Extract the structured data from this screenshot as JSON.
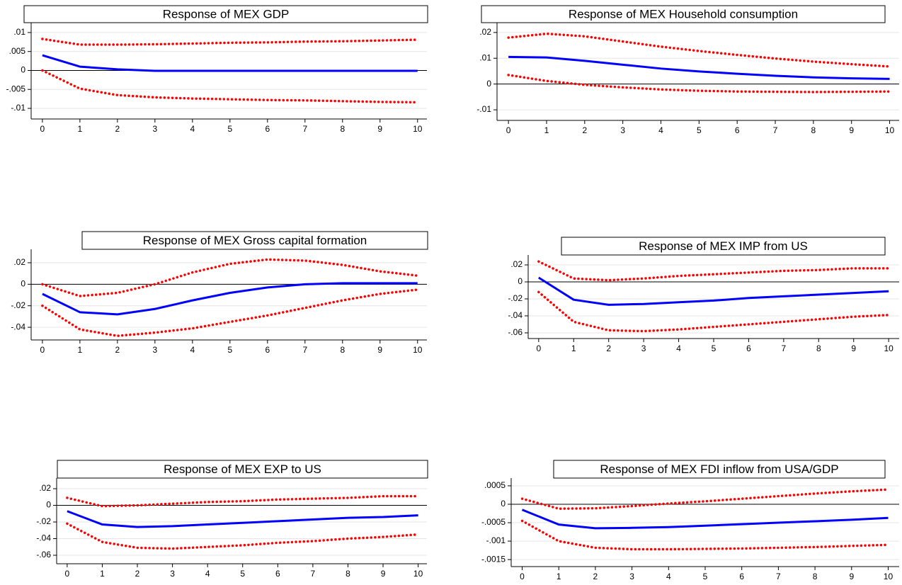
{
  "chart_data": [
    {
      "type": "line",
      "title": "Response of MEX GDP",
      "x": [
        0,
        1,
        2,
        3,
        4,
        5,
        6,
        7,
        8,
        9,
        10
      ],
      "xlim": [
        -0.3,
        10.25
      ],
      "xticks": [
        0,
        1,
        2,
        3,
        4,
        5,
        6,
        7,
        8,
        9,
        10
      ],
      "ylim": [
        -0.0128,
        0.0126
      ],
      "yticks": [
        {
          "value": 0.01,
          "label": ".01"
        },
        {
          "value": 0.005,
          "label": ".005"
        },
        0,
        {
          "value": -0.005,
          "label": "-.005"
        },
        {
          "value": -0.01,
          "label": "-.01"
        }
      ],
      "grid": true,
      "zero_line": true,
      "series": [
        {
          "color": "#0000ff",
          "line_style": "solid",
          "values": [
            0.004,
            0.001,
            0.0003,
            -0.0001,
            -0.0001,
            -0.0001,
            -0.0001,
            -0.0001,
            -0.0001,
            -0.0001,
            -0.0001
          ]
        },
        {
          "color": "#ff0000",
          "line_style": "dotted",
          "values": [
            0.0083,
            0.0068,
            0.0068,
            0.0069,
            0.0071,
            0.0073,
            0.0074,
            0.0076,
            0.0077,
            0.0079,
            0.0081
          ]
        },
        {
          "color": "#ff0000",
          "line_style": "dotted",
          "values": [
            0,
            -0.0048,
            -0.0065,
            -0.0071,
            -0.0074,
            -0.0076,
            -0.0078,
            -0.0079,
            -0.0081,
            -0.0083,
            -0.0084
          ]
        }
      ]
    },
    {
      "type": "line",
      "title": "Response of MEX Household consumption",
      "x": [
        0,
        1,
        2,
        3,
        4,
        5,
        6,
        7,
        8,
        9,
        10
      ],
      "xlim": [
        -0.3,
        10.25
      ],
      "xticks": [
        0,
        1,
        2,
        3,
        4,
        5,
        6,
        7,
        8,
        9,
        10
      ],
      "ylim": [
        -0.0141,
        0.0238
      ],
      "yticks": [
        {
          "value": 0.02,
          "label": ".02"
        },
        {
          "value": 0.01,
          "label": ".01"
        },
        0,
        {
          "value": -0.01,
          "label": "-.01"
        }
      ],
      "grid": true,
      "zero_line": true,
      "series": [
        {
          "color": "#0000ff",
          "line_style": "solid",
          "values": [
            0.0105,
            0.0103,
            0.009,
            0.0075,
            0.006,
            0.0049,
            0.004,
            0.0032,
            0.0026,
            0.0022,
            0.002
          ]
        },
        {
          "color": "#ff0000",
          "line_style": "dotted",
          "values": [
            0.018,
            0.0195,
            0.0185,
            0.0165,
            0.0145,
            0.0128,
            0.0113,
            0.0099,
            0.0087,
            0.0077,
            0.0068
          ]
        },
        {
          "color": "#ff0000",
          "line_style": "dotted",
          "values": [
            0.0035,
            0.0012,
            -0.0003,
            -0.0013,
            -0.0021,
            -0.0026,
            -0.0029,
            -0.003,
            -0.0031,
            -0.003,
            -0.0029
          ]
        }
      ]
    },
    {
      "type": "line",
      "title": "Response of MEX Gross capital formation",
      "x": [
        0,
        1,
        2,
        3,
        4,
        5,
        6,
        7,
        8,
        9,
        10
      ],
      "xlim": [
        -0.3,
        10.25
      ],
      "xticks": [
        0,
        1,
        2,
        3,
        4,
        5,
        6,
        7,
        8,
        9,
        10
      ],
      "ylim": [
        -0.0518,
        0.0325
      ],
      "yticks": [
        {
          "value": 0.02,
          "label": ".02"
        },
        0,
        {
          "value": -0.02,
          "label": "-.02"
        },
        {
          "value": -0.04,
          "label": "-.04"
        }
      ],
      "grid": true,
      "zero_line": true,
      "series": [
        {
          "color": "#0000ff",
          "line_style": "solid",
          "values": [
            -0.009,
            -0.026,
            -0.028,
            -0.023,
            -0.015,
            -0.008,
            -0.003,
            0,
            0.001,
            0.001,
            0.001
          ]
        },
        {
          "color": "#ff0000",
          "line_style": "dotted",
          "values": [
            0,
            -0.011,
            -0.008,
            0,
            0.011,
            0.019,
            0.023,
            0.022,
            0.018,
            0.012,
            0.008
          ]
        },
        {
          "color": "#ff0000",
          "line_style": "dotted",
          "values": [
            -0.02,
            -0.042,
            -0.048,
            -0.045,
            -0.041,
            -0.035,
            -0.029,
            -0.022,
            -0.015,
            -0.009,
            -0.005
          ]
        }
      ]
    },
    {
      "type": "line",
      "title": "Response of MEX IMP from US",
      "x": [
        0,
        1,
        2,
        3,
        4,
        5,
        6,
        7,
        8,
        9,
        10
      ],
      "xlim": [
        -0.3,
        10.3
      ],
      "xticks": [
        0,
        1,
        2,
        3,
        4,
        5,
        6,
        7,
        8,
        9,
        10
      ],
      "ylim": [
        -0.0667,
        0.0317
      ],
      "yticks": [
        {
          "value": 0.02,
          "label": ".02"
        },
        0,
        {
          "value": -0.02,
          "label": "-.02"
        },
        {
          "value": -0.04,
          "label": "-.04"
        },
        {
          "value": -0.06,
          "label": "-.06"
        }
      ],
      "grid": true,
      "zero_line": true,
      "series": [
        {
          "color": "#0000ff",
          "line_style": "solid",
          "values": [
            0.005,
            -0.021,
            -0.027,
            -0.026,
            -0.024,
            -0.022,
            -0.019,
            -0.017,
            -0.015,
            -0.013,
            -0.011
          ]
        },
        {
          "color": "#ff0000",
          "line_style": "dotted",
          "values": [
            0.024,
            0.004,
            0.002,
            0.004,
            0.007,
            0.009,
            0.011,
            0.013,
            0.014,
            0.016,
            0.016
          ]
        },
        {
          "color": "#ff0000",
          "line_style": "dotted",
          "values": [
            -0.012,
            -0.047,
            -0.057,
            -0.058,
            -0.056,
            -0.053,
            -0.05,
            -0.047,
            -0.044,
            -0.041,
            -0.039
          ]
        }
      ]
    },
    {
      "type": "line",
      "title": "Response of MEX EXP to US",
      "x": [
        0,
        1,
        2,
        3,
        4,
        5,
        6,
        7,
        8,
        9,
        10
      ],
      "xlim": [
        -0.3,
        10.25
      ],
      "xticks": [
        0,
        1,
        2,
        3,
        4,
        5,
        6,
        7,
        8,
        9,
        10
      ],
      "ylim": [
        -0.0702,
        0.0328
      ],
      "yticks": [
        {
          "value": 0.02,
          "label": ".02"
        },
        0,
        {
          "value": -0.02,
          "label": "-.02"
        },
        {
          "value": -0.04,
          "label": "-.04"
        },
        {
          "value": -0.06,
          "label": "-.06"
        }
      ],
      "grid": true,
      "zero_line": true,
      "series": [
        {
          "color": "#0000ff",
          "line_style": "solid",
          "values": [
            -0.007,
            -0.023,
            -0.026,
            -0.025,
            -0.023,
            -0.021,
            -0.019,
            -0.017,
            -0.015,
            -0.014,
            -0.012
          ]
        },
        {
          "color": "#ff0000",
          "line_style": "dotted",
          "values": [
            0.009,
            -0.001,
            0,
            0.002,
            0.004,
            0.005,
            0.007,
            0.008,
            0.009,
            0.011,
            0.011
          ]
        },
        {
          "color": "#ff0000",
          "line_style": "dotted",
          "values": [
            -0.022,
            -0.044,
            -0.051,
            -0.052,
            -0.05,
            -0.048,
            -0.045,
            -0.043,
            -0.04,
            -0.038,
            -0.035
          ]
        }
      ]
    },
    {
      "type": "line",
      "title": "Response of MEX FDI inflow from USA/GDP",
      "x": [
        0,
        1,
        2,
        3,
        4,
        5,
        6,
        7,
        8,
        9,
        10
      ],
      "xlim": [
        -0.3,
        10.3
      ],
      "xticks": [
        0,
        1,
        2,
        3,
        4,
        5,
        6,
        7,
        8,
        9,
        10
      ],
      "ylim": [
        -0.00169,
        0.00071
      ],
      "yticks": [
        {
          "value": 0.0005,
          "label": ".0005"
        },
        0,
        {
          "value": -0.0005,
          "label": "-.0005"
        },
        {
          "value": -0.001,
          "label": "-.001"
        },
        {
          "value": -0.0015,
          "label": "-.0015"
        }
      ],
      "grid": true,
      "zero_line": true,
      "series": [
        {
          "color": "#0000ff",
          "line_style": "solid",
          "values": [
            -0.00015,
            -0.00055,
            -0.00065,
            -0.00064,
            -0.00062,
            -0.00058,
            -0.00054,
            -0.0005,
            -0.00046,
            -0.00042,
            -0.00037
          ]
        },
        {
          "color": "#ff0000",
          "line_style": "dotted",
          "values": [
            0.00015,
            -0.00012,
            -0.00011,
            -5e-05,
            2e-05,
            8e-05,
            0.00015,
            0.00022,
            0.00029,
            0.00035,
            0.0004
          ]
        },
        {
          "color": "#ff0000",
          "line_style": "dotted",
          "values": [
            -0.00045,
            -0.001,
            -0.00118,
            -0.00122,
            -0.00122,
            -0.00121,
            -0.0012,
            -0.00118,
            -0.00116,
            -0.00113,
            -0.0011
          ]
        }
      ]
    }
  ]
}
